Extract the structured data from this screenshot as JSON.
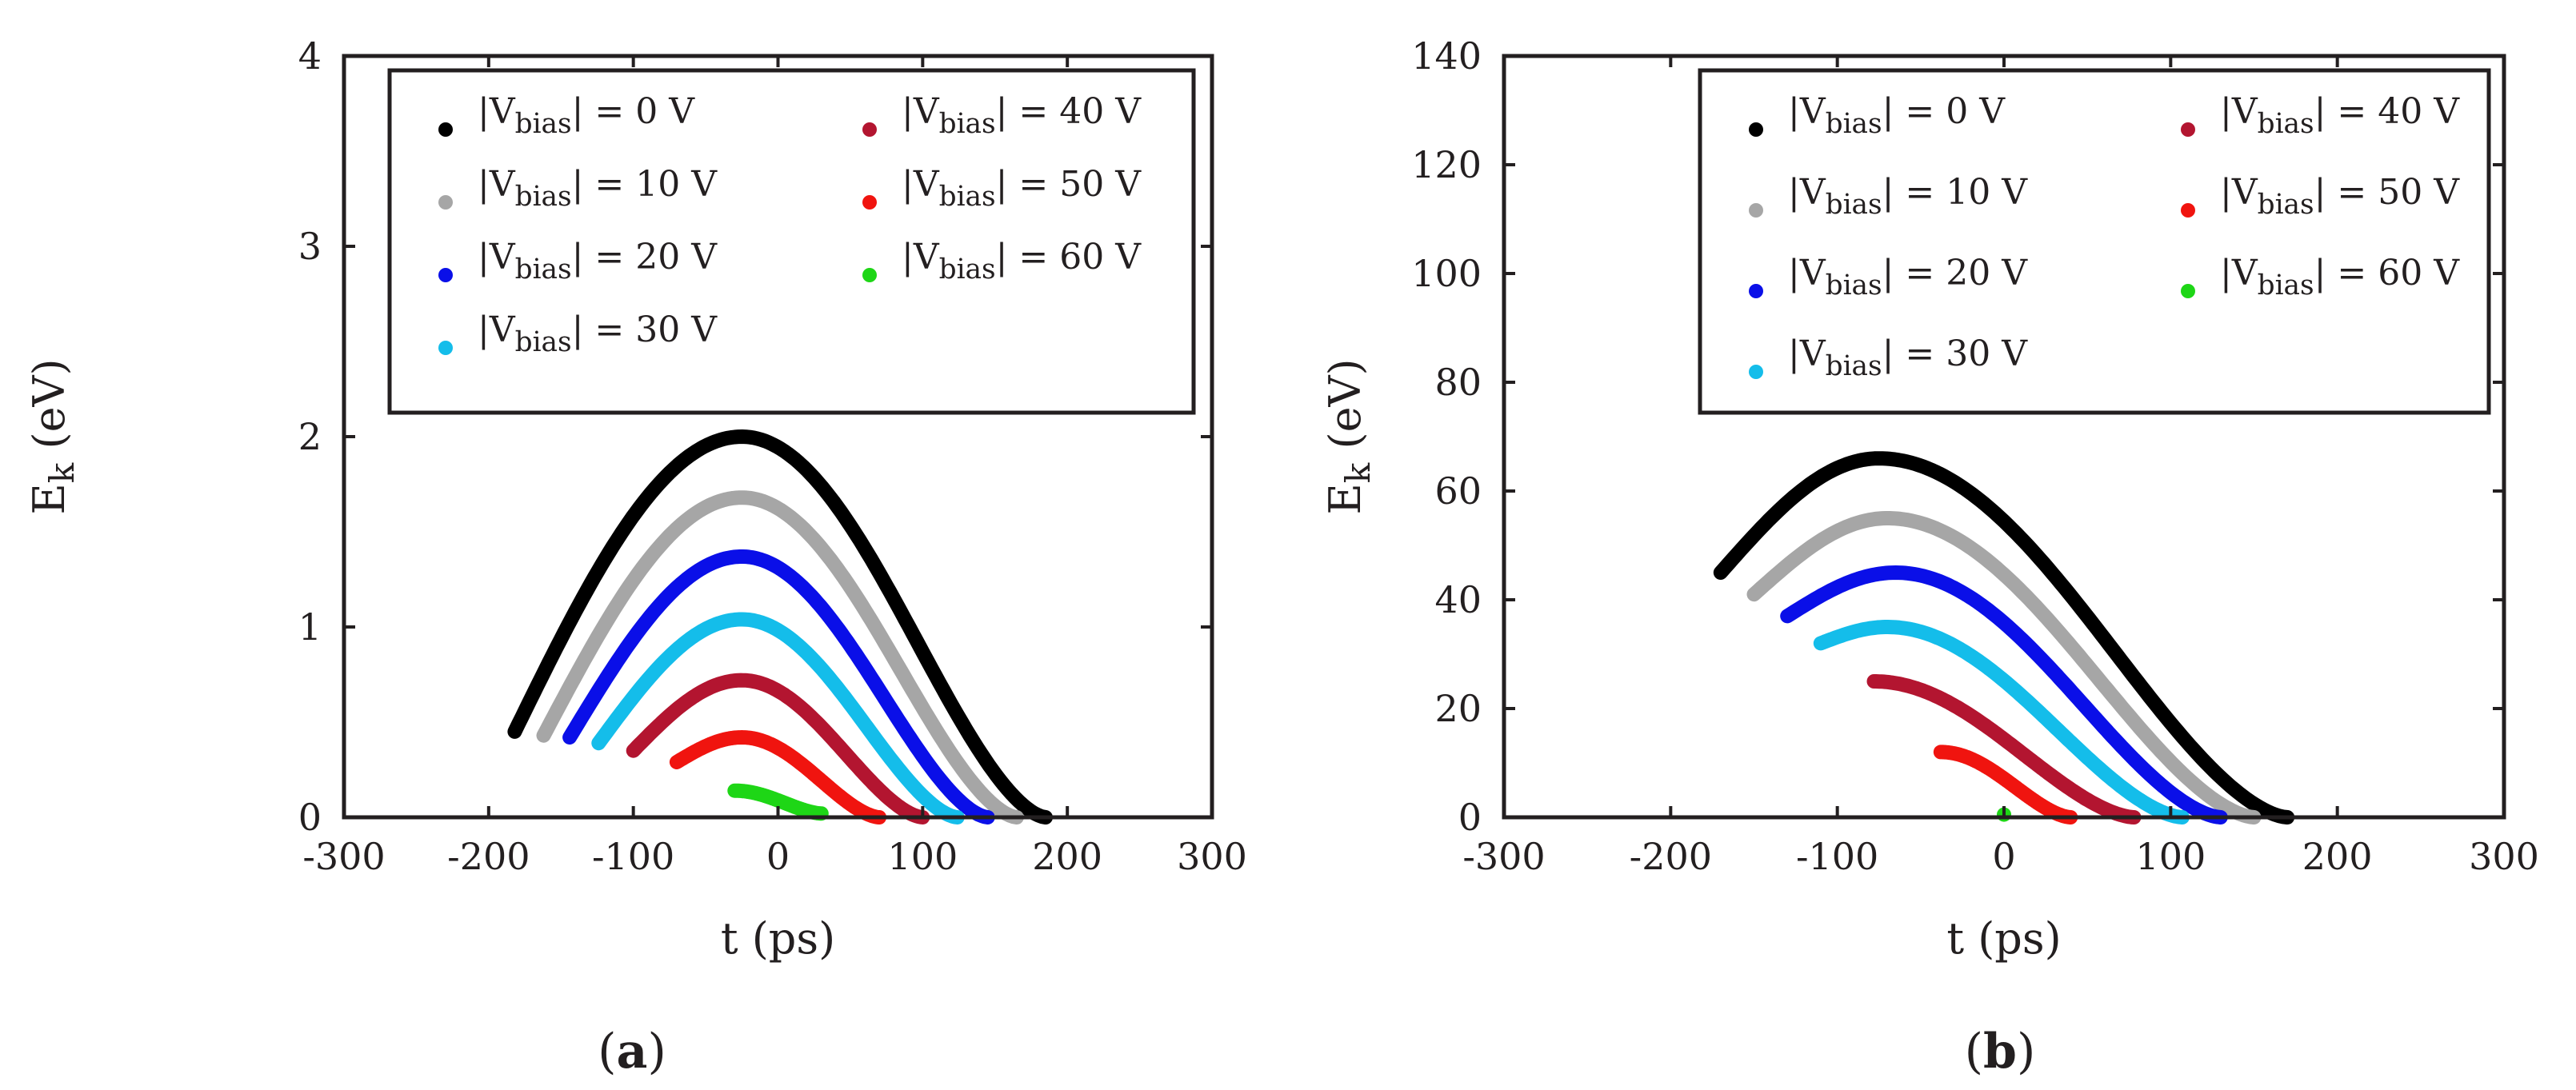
{
  "chart_data": [
    {
      "type": "scatter",
      "panel": "(a)",
      "xlabel": "t (ps)",
      "ylabel": "E_k (eV)",
      "ylabel_main": "E",
      "ylabel_sub": "k",
      "ylabel_unit": " (eV)",
      "xlim": [
        -300,
        300
      ],
      "ylim": [
        0,
        4
      ],
      "xticks": [
        -300,
        -200,
        -100,
        0,
        100,
        200,
        300
      ],
      "yticks": [
        0,
        1,
        2,
        3,
        4
      ],
      "grid": false,
      "legend_position": "top-right",
      "series": [
        {
          "name": "|V_bias| = 0 V",
          "label_main": "|V",
          "label_sub": "bias",
          "label_tail": "| = 0 V",
          "color": "#000000",
          "t_start": -182,
          "t_end": 185,
          "t_peak": -25,
          "e_start": 0.45,
          "e_peak": 2.0,
          "e_end": 0.0
        },
        {
          "name": "|V_bias| = 10 V",
          "label_main": "|V",
          "label_sub": "bias",
          "label_tail": "| = 10 V",
          "color": "#a6a6a6",
          "t_start": -162,
          "t_end": 165,
          "t_peak": -25,
          "e_start": 0.43,
          "e_peak": 1.68,
          "e_end": 0.0
        },
        {
          "name": "|V_bias| = 20 V",
          "label_main": "|V",
          "label_sub": "bias",
          "label_tail": "| = 20 V",
          "color": "#0a0fe8",
          "t_start": -144,
          "t_end": 145,
          "t_peak": -25,
          "e_start": 0.42,
          "e_peak": 1.37,
          "e_end": 0.0
        },
        {
          "name": "|V_bias| = 30 V",
          "label_main": "|V",
          "label_sub": "bias",
          "label_tail": "| = 30 V",
          "color": "#14bdea",
          "t_start": -124,
          "t_end": 124,
          "t_peak": -25,
          "e_start": 0.39,
          "e_peak": 1.04,
          "e_end": 0.0
        },
        {
          "name": "|V_bias| = 40 V",
          "label_main": "|V",
          "label_sub": "bias",
          "label_tail": "| = 40 V",
          "color": "#b31530",
          "t_start": -100,
          "t_end": 100,
          "t_peak": -25,
          "e_start": 0.35,
          "e_peak": 0.72,
          "e_end": 0.0
        },
        {
          "name": "|V_bias| = 50 V",
          "label_main": "|V",
          "label_sub": "bias",
          "label_tail": "| = 50 V",
          "color": "#f0140f",
          "t_start": -70,
          "t_end": 70,
          "t_peak": -25,
          "e_start": 0.29,
          "e_peak": 0.42,
          "e_end": 0.0
        },
        {
          "name": "|V_bias| = 60 V",
          "label_main": "|V",
          "label_sub": "bias",
          "label_tail": "| = 60 V",
          "color": "#1ed616",
          "t_start": -30,
          "t_end": 30,
          "t_peak": -30,
          "e_start": 0.14,
          "e_peak": 0.14,
          "e_end": 0.02
        }
      ]
    },
    {
      "type": "scatter",
      "panel": "(b)",
      "xlabel": "t (ps)",
      "ylabel": "E_k (eV)",
      "ylabel_main": "E",
      "ylabel_sub": "k",
      "ylabel_unit": " (eV)",
      "xlim": [
        -300,
        300
      ],
      "ylim": [
        0,
        140
      ],
      "xticks": [
        -300,
        -200,
        -100,
        0,
        100,
        200,
        300
      ],
      "yticks": [
        0,
        20,
        40,
        60,
        80,
        100,
        120,
        140
      ],
      "grid": false,
      "legend_position": "top-right",
      "series": [
        {
          "name": "|V_bias| = 0 V",
          "label_main": "|V",
          "label_sub": "bias",
          "label_tail": "| = 0 V",
          "color": "#000000",
          "t_start": -170,
          "t_end": 170,
          "t_peak": -75,
          "e_start": 45,
          "e_peak": 66,
          "e_end": 0
        },
        {
          "name": "|V_bias| = 10 V",
          "label_main": "|V",
          "label_sub": "bias",
          "label_tail": "| = 10 V",
          "color": "#a6a6a6",
          "t_start": -150,
          "t_end": 150,
          "t_peak": -70,
          "e_start": 41,
          "e_peak": 55,
          "e_end": 0
        },
        {
          "name": "|V_bias| = 20 V",
          "label_main": "|V",
          "label_sub": "bias",
          "label_tail": "| = 20 V",
          "color": "#0a0fe8",
          "t_start": -130,
          "t_end": 130,
          "t_peak": -65,
          "e_start": 37,
          "e_peak": 45,
          "e_end": 0
        },
        {
          "name": "|V_bias| = 30 V",
          "label_main": "|V",
          "label_sub": "bias",
          "label_tail": "| = 30 V",
          "color": "#14bdea",
          "t_start": -110,
          "t_end": 107,
          "t_peak": -70,
          "e_start": 32,
          "e_peak": 35,
          "e_end": 0
        },
        {
          "name": "|V_bias| = 40 V",
          "label_main": "|V",
          "label_sub": "bias",
          "label_tail": "| = 40 V",
          "color": "#b31530",
          "t_start": -78,
          "t_end": 78,
          "t_peak": -78,
          "e_start": 25,
          "e_peak": 25,
          "e_end": 0
        },
        {
          "name": "|V_bias| = 50 V",
          "label_main": "|V",
          "label_sub": "bias",
          "label_tail": "| = 50 V",
          "color": "#f0140f",
          "t_start": -38,
          "t_end": 40,
          "t_peak": -38,
          "e_start": 12,
          "e_peak": 12,
          "e_end": 0
        },
        {
          "name": "|V_bias| = 60 V",
          "label_main": "|V",
          "label_sub": "bias",
          "label_tail": "| = 60 V",
          "color": "#1ed616",
          "t_start": 0,
          "t_end": 0,
          "t_peak": 0,
          "e_start": 0.5,
          "e_peak": 0.5,
          "e_end": 0.5
        }
      ]
    }
  ]
}
